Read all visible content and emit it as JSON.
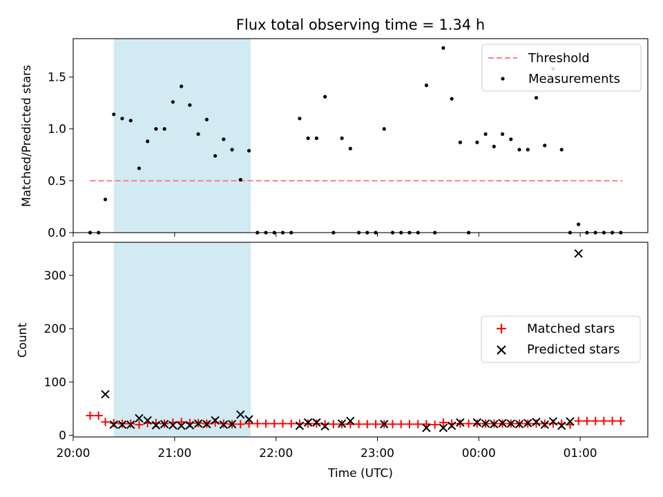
{
  "title": "Flux total observing time = 1.34 h",
  "colors": {
    "threshold": "#ff7f7f",
    "measurement": "#000000",
    "matched": "#ff0000",
    "predicted": "#000000",
    "shade": "#add8e6"
  },
  "chart_data": [
    {
      "type": "scatter",
      "ylabel": "Matched/Predicted stars",
      "xlim": [
        "20:00",
        "01:40"
      ],
      "ylim": [
        0,
        1.87
      ],
      "yticks": [
        "0.0",
        "0.5",
        "1.0",
        "1.5"
      ],
      "shaded_region": [
        "20:24",
        "21:45"
      ],
      "legend": {
        "placement": "upper right",
        "entries": [
          "Threshold",
          "Measurements"
        ]
      },
      "threshold": {
        "name": "Threshold",
        "y": 0.5,
        "x_range": [
          "20:10",
          "01:25"
        ]
      },
      "series": [
        {
          "name": "Measurements",
          "x": [
            "20:10",
            "20:15",
            "20:19",
            "20:24",
            "20:29",
            "20:34",
            "20:39",
            "20:44",
            "20:49",
            "20:54",
            "20:59",
            "21:04",
            "21:09",
            "21:14",
            "21:19",
            "21:24",
            "21:29",
            "21:34",
            "21:39",
            "21:44",
            "21:49",
            "21:54",
            "21:59",
            "22:04",
            "22:09",
            "22:14",
            "22:19",
            "22:24",
            "22:29",
            "22:34",
            "22:39",
            "22:44",
            "22:49",
            "22:54",
            "22:59",
            "23:04",
            "23:09",
            "23:14",
            "23:19",
            "23:24",
            "23:29",
            "23:34",
            "23:39",
            "23:44",
            "23:49",
            "23:54",
            "23:59",
            "00:04",
            "00:09",
            "00:14",
            "00:19",
            "00:24",
            "00:29",
            "00:34",
            "00:39",
            "00:44",
            "00:49",
            "00:54",
            "00:59",
            "01:04",
            "01:09",
            "01:14",
            "01:19",
            "01:24"
          ],
          "y": [
            0,
            0,
            0.32,
            1.14,
            1.1,
            1.08,
            0.62,
            0.88,
            1.0,
            1.0,
            1.26,
            1.41,
            1.23,
            0.95,
            1.09,
            0.74,
            0.9,
            0.8,
            0.51,
            0.79,
            0,
            0,
            0,
            0,
            0,
            1.1,
            0.91,
            0.91,
            1.31,
            0,
            0.91,
            0.81,
            0,
            0,
            0,
            1.0,
            0,
            0,
            0,
            0,
            1.42,
            0,
            1.78,
            1.29,
            0.87,
            0,
            0.87,
            0.95,
            0.83,
            0.95,
            0.9,
            0.8,
            0.8,
            1.3,
            0.84,
            1.58,
            0.8,
            0,
            0.08,
            0,
            0,
            0,
            0,
            0
          ]
        }
      ]
    },
    {
      "type": "scatter",
      "xlabel": "Time (UTC)",
      "ylabel": "Count",
      "xlim": [
        "20:00",
        "01:40"
      ],
      "ylim": [
        -3,
        362
      ],
      "xticks": [
        "20:00",
        "21:00",
        "22:00",
        "23:00",
        "00:00",
        "01:00"
      ],
      "yticks": [
        "0",
        "100",
        "200",
        "300"
      ],
      "shaded_region": [
        "20:24",
        "21:45"
      ],
      "legend": {
        "placement": "center right",
        "entries": [
          "Matched stars",
          "Predicted stars"
        ]
      },
      "series": [
        {
          "name": "Matched stars",
          "marker": "+",
          "x": [
            "20:10",
            "20:15",
            "20:19",
            "20:24",
            "20:29",
            "20:34",
            "20:39",
            "20:44",
            "20:49",
            "20:54",
            "20:59",
            "21:04",
            "21:09",
            "21:14",
            "21:19",
            "21:24",
            "21:29",
            "21:34",
            "21:39",
            "21:44",
            "21:49",
            "21:54",
            "21:59",
            "22:04",
            "22:09",
            "22:14",
            "22:19",
            "22:24",
            "22:29",
            "22:34",
            "22:39",
            "22:44",
            "22:49",
            "22:54",
            "22:59",
            "23:04",
            "23:09",
            "23:14",
            "23:19",
            "23:24",
            "23:29",
            "23:34",
            "23:39",
            "23:44",
            "23:49",
            "23:54",
            "23:59",
            "00:04",
            "00:09",
            "00:14",
            "00:19",
            "00:24",
            "00:29",
            "00:34",
            "00:39",
            "00:44",
            "00:49",
            "00:54",
            "00:59",
            "01:04",
            "01:09",
            "01:14",
            "01:19",
            "01:24"
          ],
          "y": [
            37,
            37,
            25,
            23,
            22,
            22,
            20,
            23,
            23,
            22,
            24,
            25,
            23,
            23,
            22,
            24,
            22,
            21,
            21,
            22,
            22,
            22,
            22,
            22,
            22,
            22,
            22,
            22,
            21,
            21,
            21,
            21,
            21,
            21,
            21,
            21,
            21,
            21,
            21,
            21,
            21,
            20,
            24,
            22,
            22,
            22,
            22,
            22,
            22,
            22,
            22,
            22,
            22,
            22,
            22,
            22,
            22,
            20,
            27,
            27,
            27,
            27,
            27,
            27
          ]
        },
        {
          "name": "Predicted stars",
          "marker": "x",
          "x": [
            "20:19",
            "20:24",
            "20:29",
            "20:34",
            "20:39",
            "20:44",
            "20:49",
            "20:54",
            "20:59",
            "21:04",
            "21:09",
            "21:14",
            "21:19",
            "21:24",
            "21:29",
            "21:34",
            "21:39",
            "21:44",
            "22:14",
            "22:19",
            "22:24",
            "22:29",
            "22:39",
            "22:44",
            "23:04",
            "23:29",
            "23:39",
            "23:44",
            "23:49",
            "23:59",
            "00:04",
            "00:09",
            "00:14",
            "00:19",
            "00:24",
            "00:29",
            "00:34",
            "00:39",
            "00:44",
            "00:49",
            "00:54",
            "00:59"
          ],
          "y": [
            77,
            20,
            20,
            20,
            32,
            28,
            19,
            21,
            19,
            18,
            19,
            22,
            21,
            28,
            20,
            21,
            39,
            30,
            18,
            24,
            24,
            17,
            22,
            27,
            21,
            14,
            14,
            18,
            24,
            24,
            22,
            21,
            23,
            22,
            21,
            23,
            25,
            20,
            26,
            18,
            26,
            341
          ]
        }
      ]
    }
  ]
}
